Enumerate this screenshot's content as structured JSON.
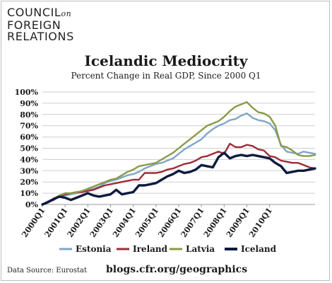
{
  "logo": {
    "line1_a": "COUNCIL",
    "line1_b": "on",
    "line2": "FOREIGN",
    "line3": "RELATIONS"
  },
  "footer": {
    "source": "Data Source: Eurostat",
    "url": "blogs.cfr.org/geographics"
  },
  "colors": {
    "Estonia": "#7fa6c8",
    "Ireland": "#9e2b3a",
    "Latvia": "#8a9a48",
    "Iceland": "#0e1a3e"
  },
  "chart_data": {
    "type": "line",
    "title": "Icelandic Mediocrity",
    "subtitle": "Percent Change in Real GDP, Since 2000 Q1",
    "ylim": [
      0,
      100
    ],
    "yticks": [
      0,
      10,
      20,
      30,
      40,
      50,
      60,
      70,
      80,
      90,
      100
    ],
    "yticklabels": [
      "0%",
      "10%",
      "20%",
      "30%",
      "40%",
      "50%",
      "60%",
      "70%",
      "80%",
      "90%",
      "100%"
    ],
    "xticklabels": [
      "2000Q1",
      "2001Q1",
      "2002Q1",
      "2003Q1",
      "2004Q1",
      "2005Q1",
      "2006Q1",
      "2007Q1",
      "2008Q1",
      "2009Q1",
      "2010Q1"
    ],
    "x_start": "2000Q1",
    "grid": "horizontal",
    "legend": "bottom",
    "series": [
      {
        "name": "Estonia",
        "values": [
          0,
          3,
          5,
          7,
          8,
          9,
          10,
          11,
          13,
          14,
          16,
          19,
          21,
          22,
          24,
          26,
          27,
          29,
          32,
          34,
          36,
          37,
          39,
          41,
          45,
          49,
          52,
          55,
          58,
          63,
          67,
          70,
          72,
          75,
          76,
          79,
          81,
          77,
          75,
          74,
          72,
          66,
          53,
          47,
          46,
          45,
          47,
          46,
          45
        ]
      },
      {
        "name": "Ireland",
        "values": [
          0,
          2,
          4,
          7,
          9,
          10,
          11,
          11,
          12,
          13,
          15,
          17,
          18,
          19,
          20,
          21,
          22,
          22,
          28,
          28,
          28,
          29,
          31,
          32,
          34,
          36,
          37,
          39,
          42,
          43,
          45,
          47,
          45,
          54,
          51,
          51,
          53,
          52,
          49,
          48,
          43,
          42,
          39,
          38,
          37,
          37,
          35,
          33,
          32
        ]
      },
      {
        "name": "Latvia",
        "values": [
          0,
          2,
          5,
          8,
          10,
          10,
          11,
          12,
          14,
          16,
          18,
          20,
          22,
          23,
          26,
          29,
          31,
          34,
          35,
          36,
          37,
          40,
          43,
          46,
          50,
          54,
          58,
          62,
          66,
          70,
          72,
          74,
          78,
          83,
          87,
          89,
          91,
          86,
          82,
          81,
          78,
          70,
          52,
          51,
          48,
          44,
          43,
          43,
          44
        ]
      },
      {
        "name": "Iceland",
        "values": [
          0,
          2,
          5,
          7,
          6,
          4,
          6,
          8,
          10,
          8,
          7,
          8,
          9,
          13,
          9,
          10,
          11,
          17,
          17,
          18,
          19,
          22,
          25,
          27,
          30,
          28,
          29,
          31,
          35,
          34,
          33,
          42,
          46,
          41,
          43,
          44,
          43,
          44,
          43,
          42,
          41,
          37,
          34,
          28,
          29,
          30,
          30,
          31,
          32
        ]
      }
    ]
  }
}
